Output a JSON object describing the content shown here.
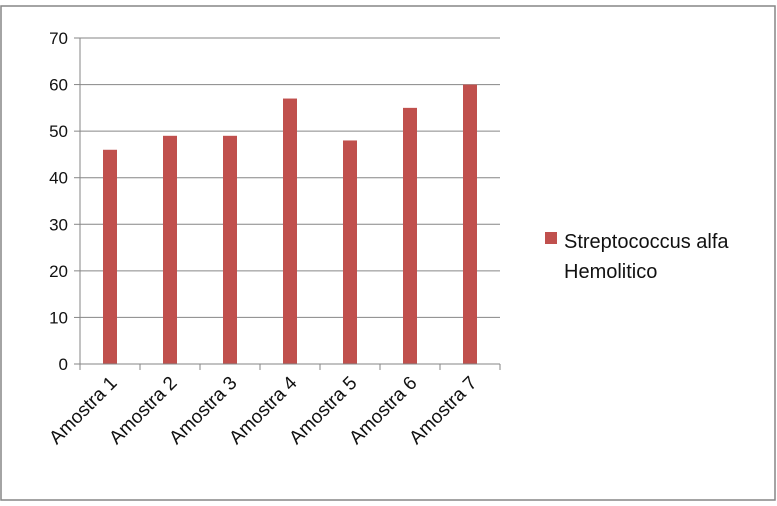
{
  "chart_data": {
    "type": "bar",
    "title": "",
    "xlabel": "",
    "ylabel": "",
    "categories": [
      "Amostra 1",
      "Amostra 2",
      "Amostra 3",
      "Amostra 4",
      "Amostra 5",
      "Amostra 6",
      "Amostra 7"
    ],
    "series": [
      {
        "name": "Streptococcus alfa Hemolitico",
        "legend_lines": [
          "Streptococcus alfa",
          "Hemolitico"
        ],
        "values": [
          46,
          49,
          49,
          57,
          48,
          55,
          60
        ],
        "color": "#c0504d"
      }
    ],
    "ylim": [
      0,
      70
    ],
    "yticks": [
      0,
      10,
      20,
      30,
      40,
      50,
      60,
      70
    ],
    "grid": true,
    "legend_position": "right"
  },
  "colors": {
    "border": "#868686",
    "gridline": "#868686",
    "axis": "#868686"
  }
}
